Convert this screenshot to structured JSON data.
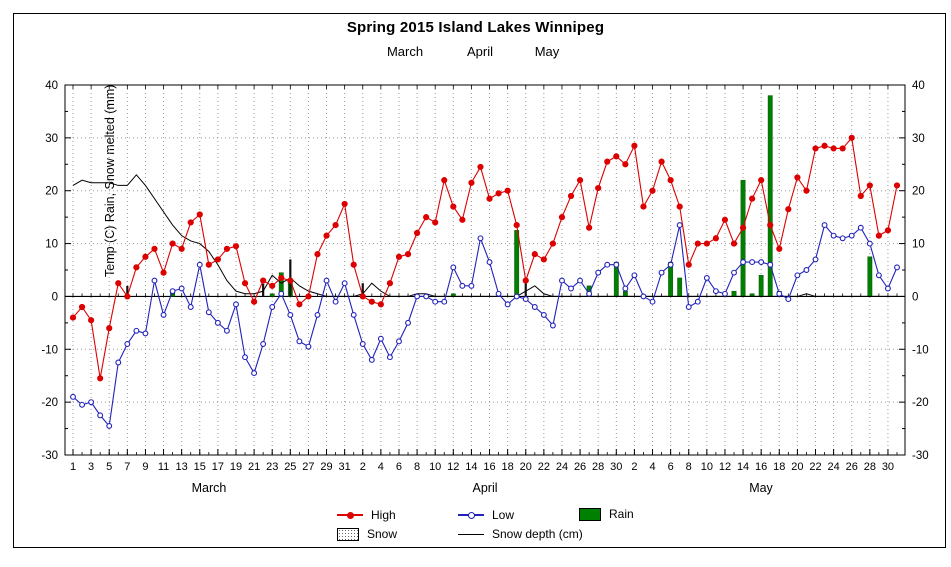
{
  "title": "Spring 2015 Island Lakes Winnipeg",
  "subtitle_months": [
    "March",
    "April",
    "May"
  ],
  "y_axis_label": "Temp (C) Rain, Snow melted (mm)",
  "legend": {
    "high": "High",
    "low": "Low",
    "rain": "Rain",
    "snow": "Snow",
    "snow_depth": "Snow depth (cm)"
  },
  "colors": {
    "high": "#dd0000",
    "low": "#2222bb",
    "rain": "#008000",
    "snow_bar": "#111111",
    "snow_depth": "#000000",
    "grid": "#999999",
    "axis": "#000000"
  },
  "chart_data": {
    "type": "line",
    "title": "Spring 2015 Island Lakes Winnipeg",
    "xlabel": "",
    "ylabel": "Temp (C) Rain, Snow melted (mm)",
    "ylim": [
      -30,
      40
    ],
    "yticks": [
      40,
      30,
      20,
      10,
      0,
      -10,
      -20,
      -30
    ],
    "grid": "dotted",
    "legend_position": "bottom",
    "months": [
      {
        "name": "March",
        "days": 31,
        "start_day": 1,
        "tick_labels": [
          1,
          3,
          5,
          7,
          9,
          11,
          13,
          15,
          17,
          19,
          21,
          23,
          25,
          27,
          29,
          31
        ]
      },
      {
        "name": "April",
        "days": 30,
        "start_day": 32,
        "tick_labels": [
          2,
          4,
          6,
          8,
          10,
          12,
          14,
          16,
          18,
          20,
          22,
          24,
          26,
          28,
          30
        ]
      },
      {
        "name": "May",
        "days": 31,
        "start_day": 62,
        "tick_labels": [
          2,
          4,
          6,
          8,
          10,
          12,
          14,
          16,
          18,
          20,
          22,
          24,
          26,
          28,
          30
        ]
      }
    ],
    "series": [
      {
        "name": "High",
        "type": "line-dot",
        "color": "#dd0000",
        "values": [
          -4,
          -2,
          -4.5,
          -15.5,
          -6,
          2.5,
          0,
          5.5,
          7.5,
          9,
          4.5,
          10,
          9,
          14,
          15.5,
          6,
          7,
          9,
          9.5,
          2.5,
          -1,
          3,
          2,
          3.5,
          3,
          -1.5,
          0,
          8,
          11.5,
          13.5,
          17.5,
          6,
          0,
          -1,
          -1.5,
          2.5,
          7.5,
          8,
          12,
          15,
          14,
          22,
          17,
          14.5,
          21.5,
          24.5,
          18.5,
          19.5,
          20,
          13.5,
          3,
          8,
          7,
          10,
          15,
          19,
          22,
          13,
          20.5,
          25.5,
          26.5,
          25,
          28.5,
          17,
          20,
          25.5,
          22,
          17,
          6,
          10,
          10,
          11,
          14.5,
          10,
          13,
          18.5,
          22,
          13.5,
          9,
          16.5,
          22.5,
          20,
          28,
          28.5,
          28,
          28,
          30,
          19,
          21,
          11.5,
          12.5,
          21
        ]
      },
      {
        "name": "Low",
        "type": "line-circle",
        "color": "#2222bb",
        "values": [
          -19,
          -20.5,
          -20,
          -22.5,
          -24.5,
          -12.5,
          -9,
          -6.5,
          -7,
          3,
          -3.5,
          1,
          1.5,
          -2,
          6,
          -3,
          -5,
          -6.5,
          -1.5,
          -11.5,
          -14.5,
          -9,
          -2,
          0.5,
          -3.5,
          -8.5,
          -9.5,
          -3.5,
          3,
          -1,
          2.5,
          -3.5,
          -9,
          -12,
          -8,
          -11.5,
          -8.5,
          -5,
          0,
          0,
          -1,
          -1,
          5.5,
          2,
          2,
          11,
          6.5,
          0.5,
          -1.5,
          0,
          -0.5,
          -2,
          -3.5,
          -5.5,
          3,
          1.5,
          3,
          0.5,
          4.5,
          6,
          6,
          1.5,
          4,
          0,
          -1,
          4.5,
          6,
          13.5,
          -2,
          -1,
          3.5,
          1,
          0.5,
          4.5,
          6.5,
          6.5,
          6.5,
          6,
          0.5,
          -0.5,
          4,
          5,
          7,
          13.5,
          11.5,
          11,
          11.5,
          13,
          10,
          4,
          1.5,
          5.5
        ]
      },
      {
        "name": "Snow depth (cm)",
        "type": "line",
        "color": "#000000",
        "values": [
          21,
          22,
          21.5,
          21.5,
          21.5,
          21,
          21,
          23,
          21,
          18.5,
          16,
          13.5,
          11.5,
          10.5,
          10,
          8.5,
          6,
          3,
          1,
          0.5,
          0.5,
          1,
          4,
          2.5,
          3.5,
          2,
          1,
          0.5,
          0,
          0,
          0,
          0,
          0.5,
          2.5,
          1,
          0,
          0,
          0,
          0.5,
          0.5,
          0,
          0,
          0,
          0,
          0,
          0,
          0,
          0,
          0,
          0,
          1,
          2,
          0.5,
          0,
          0,
          0,
          0,
          0,
          0,
          0,
          0,
          0,
          0,
          0,
          0,
          0,
          0,
          0,
          0,
          0,
          0,
          0,
          0,
          0,
          0,
          0,
          0,
          0,
          0,
          0,
          0,
          0.5,
          0,
          0,
          0,
          0,
          0,
          0,
          0,
          0,
          0,
          0
        ]
      }
    ],
    "rain_events": [
      {
        "date": "Mar 12",
        "day": 12,
        "mm": 1
      },
      {
        "date": "Mar 23",
        "day": 23,
        "mm": 0.5
      },
      {
        "date": "Mar 24",
        "day": 24,
        "mm": 4.5
      },
      {
        "date": "Mar 25",
        "day": 25,
        "mm": 3
      },
      {
        "date": "Apr 12",
        "day": 43,
        "mm": 0.5
      },
      {
        "date": "Apr 19",
        "day": 50,
        "mm": 12.5
      },
      {
        "date": "Apr 27",
        "day": 58,
        "mm": 2
      },
      {
        "date": "Apr 30",
        "day": 61,
        "mm": 6.5
      },
      {
        "date": "May 1",
        "day": 62,
        "mm": 1
      },
      {
        "date": "May 6",
        "day": 67,
        "mm": 6.5
      },
      {
        "date": "May 7",
        "day": 68,
        "mm": 3.5
      },
      {
        "date": "May 13",
        "day": 74,
        "mm": 1
      },
      {
        "date": "May 14",
        "day": 75,
        "mm": 22
      },
      {
        "date": "May 15",
        "day": 76,
        "mm": 0.5
      },
      {
        "date": "May 16",
        "day": 77,
        "mm": 4
      },
      {
        "date": "May 17",
        "day": 78,
        "mm": 38
      },
      {
        "date": "May 18",
        "day": 79,
        "mm": 1
      },
      {
        "date": "May 28",
        "day": 89,
        "mm": 7.5
      }
    ],
    "snow_events": [
      {
        "date": "Mar 7",
        "day": 7,
        "mm": 2
      },
      {
        "date": "Mar 22",
        "day": 22,
        "mm": 2.4
      },
      {
        "date": "Mar 25",
        "day": 25,
        "mm": 7
      },
      {
        "date": "Apr 2",
        "day": 33,
        "mm": 2.5
      },
      {
        "date": "Apr 9",
        "day": 40,
        "mm": 0.5
      },
      {
        "date": "Apr 20",
        "day": 51,
        "mm": 2.5
      },
      {
        "date": "Apr 27",
        "day": 58,
        "mm": 1
      }
    ]
  }
}
